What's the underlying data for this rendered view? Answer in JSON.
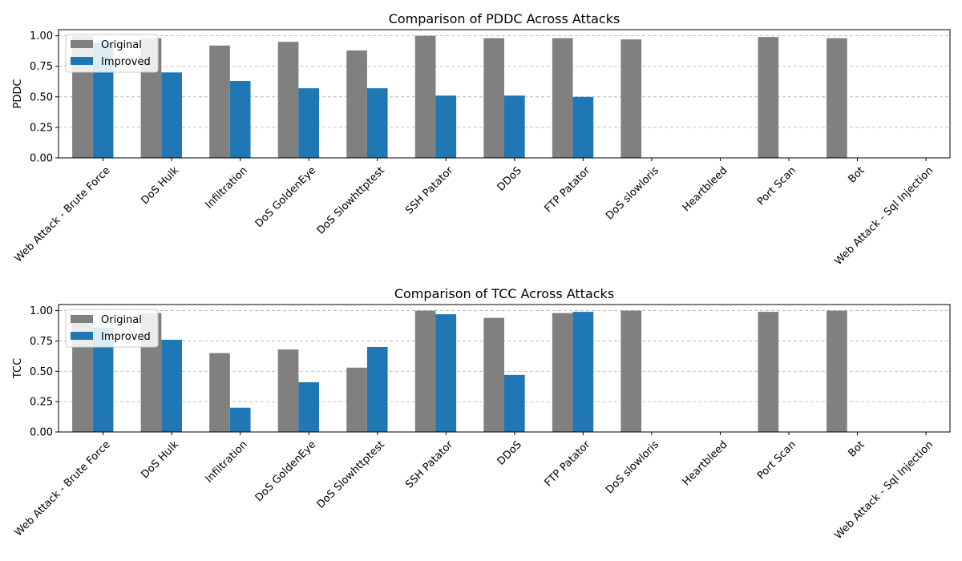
{
  "chart_data": [
    {
      "type": "bar",
      "title": "Comparison of PDDC Across Attacks",
      "xlabel": "",
      "ylabel": "PDDC",
      "ylim": [
        0,
        1.05
      ],
      "yticks": [
        "0.00",
        "0.25",
        "0.50",
        "0.75",
        "1.00"
      ],
      "grid": "y",
      "legend": "top-left",
      "categories": [
        "Web Attack - Brute Force",
        "DoS Hulk",
        "Infiltration",
        "DoS GoldenEye",
        "DoS Slowhttptest",
        "SSH Patator",
        "DDoS",
        "FTP Patator",
        "DoS slowloris",
        "Heartbleed",
        "Port Scan",
        "Bot",
        "Web Attack - Sql Injection"
      ],
      "series": [
        {
          "name": "Original",
          "color": "#808080",
          "values": [
            1.0,
            0.98,
            0.92,
            0.95,
            0.88,
            1.0,
            0.98,
            0.98,
            0.97,
            0.0,
            0.99,
            0.98,
            0.0
          ]
        },
        {
          "name": "Improved",
          "color": "#1f77b4",
          "values": [
            0.94,
            0.7,
            0.63,
            0.57,
            0.57,
            0.51,
            0.51,
            0.5,
            0.0,
            0.0,
            0.0,
            0.0,
            0.0
          ]
        }
      ]
    },
    {
      "type": "bar",
      "title": "Comparison of TCC Across Attacks",
      "xlabel": "",
      "ylabel": "TCC",
      "ylim": [
        0,
        1.05
      ],
      "yticks": [
        "0.00",
        "0.25",
        "0.50",
        "0.75",
        "1.00"
      ],
      "grid": "y",
      "legend": "top-left",
      "categories": [
        "Web Attack - Brute Force",
        "DoS Hulk",
        "Infiltration",
        "DoS GoldenEye",
        "DoS Slowhttptest",
        "SSH Patator",
        "DDoS",
        "FTP Patator",
        "DoS slowloris",
        "Heartbleed",
        "Port Scan",
        "Bot",
        "Web Attack - Sql Injection"
      ],
      "series": [
        {
          "name": "Original",
          "color": "#808080",
          "values": [
            0.93,
            0.98,
            0.65,
            0.68,
            0.53,
            1.0,
            0.94,
            0.98,
            1.0,
            0.0,
            0.99,
            1.0,
            0.0
          ]
        },
        {
          "name": "Improved",
          "color": "#1f77b4",
          "values": [
            0.86,
            0.76,
            0.2,
            0.41,
            0.7,
            0.97,
            0.47,
            0.99,
            0.0,
            0.0,
            0.0,
            0.0,
            0.0
          ]
        }
      ]
    }
  ]
}
